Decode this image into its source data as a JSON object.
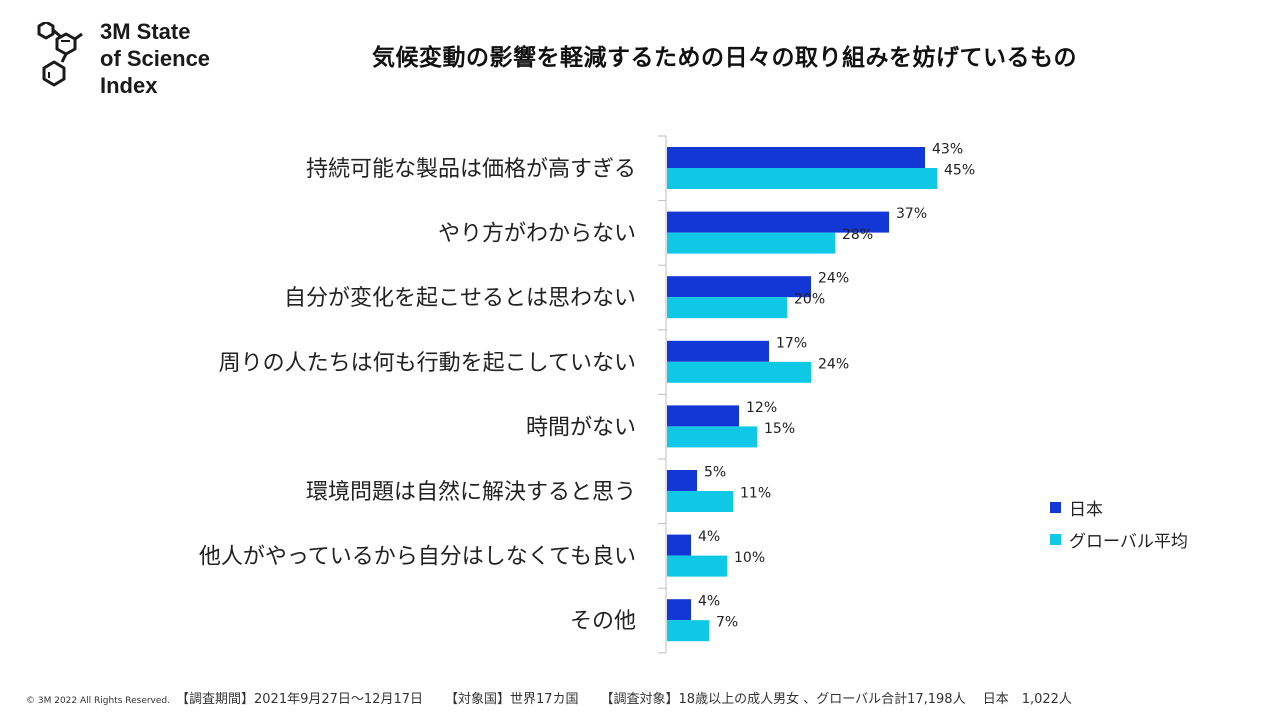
{
  "logo": {
    "line1": "3M State",
    "line2": "of Science",
    "line3": "Index"
  },
  "colors": {
    "japan": "#1237d6",
    "global": "#0fc8e6",
    "axis": "#bfbfbf"
  },
  "chart_data": {
    "type": "bar",
    "orientation": "horizontal",
    "title": "気候変動の影響を軽減するための日々の取り組みを妨げているもの",
    "categories": [
      "持続可能な製品は価格が高すぎる",
      "やり方がわからない",
      "自分が変化を起こせるとは思わない",
      "周りの人たちは何も行動を起こしていない",
      "時間がない",
      "環境問題は自然に解決すると思う",
      "他人がやっているから自分はしなくても良い",
      "その他"
    ],
    "series": [
      {
        "name": "日本",
        "values": [
          43,
          37,
          24,
          17,
          12,
          5,
          4,
          4
        ],
        "labels": [
          "43%",
          "37%",
          "24%",
          "17%",
          "12%",
          "5%",
          "4%",
          "4%"
        ]
      },
      {
        "name": "グローバル平均",
        "values": [
          45,
          28,
          20,
          24,
          15,
          11,
          10,
          7
        ],
        "labels": [
          "45%",
          "28%",
          "20%",
          "24%",
          "15%",
          "11%",
          "10%",
          "7%"
        ]
      }
    ],
    "xlim": [
      0,
      100
    ],
    "value_suffix": "%",
    "legend_position": "right"
  },
  "footer": {
    "copyright": "© 3M  2022    All Rights Reserved.",
    "period": "【調査期間】2021年9月27日～12月17日",
    "countries": "【対象国】世界17カ国",
    "subjects": "【調査対象】18歳以上の成人男女 、グローバル合計17,198人　 日本　1,022人"
  }
}
